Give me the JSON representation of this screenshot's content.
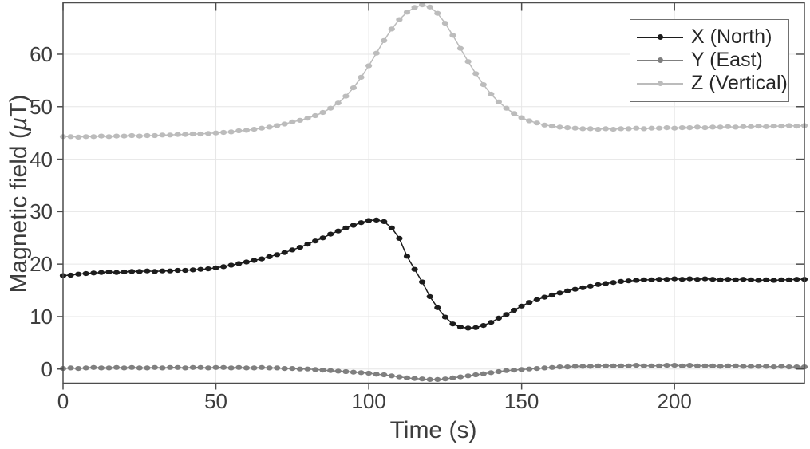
{
  "chart_data": {
    "type": "line",
    "title": "",
    "xlabel": "Time (s)",
    "ylabel": "Magnetic field (µT)",
    "xlim": [
      0,
      242.5
    ],
    "ylim": [
      -2.7,
      69.8
    ],
    "x_ticks": [
      0,
      50,
      100,
      150,
      200
    ],
    "y_ticks": [
      0,
      10,
      20,
      30,
      40,
      50,
      60
    ],
    "grid": true,
    "legend_position": "top-right",
    "x_definition": "time in seconds, t = index * t_step",
    "t_start": 0,
    "t_step": 2.5,
    "axis_color": "#4d4d4d",
    "grid_color": "#e6e6e6",
    "series": [
      {
        "name": "X (North)",
        "color": "#1c1c1c",
        "marker": "dot",
        "values": [
          17.8,
          17.9,
          18.1,
          18.2,
          18.3,
          18.4,
          18.5,
          18.4,
          18.5,
          18.6,
          18.6,
          18.7,
          18.6,
          18.7,
          18.7,
          18.8,
          18.8,
          18.9,
          19.0,
          19.1,
          19.3,
          19.5,
          19.8,
          20.1,
          20.4,
          20.7,
          21.0,
          21.4,
          21.8,
          22.2,
          22.7,
          23.2,
          23.8,
          24.4,
          25.0,
          25.7,
          26.3,
          26.9,
          27.4,
          27.9,
          28.3,
          28.4,
          28.1,
          26.9,
          24.9,
          21.5,
          19.0,
          16.6,
          13.8,
          11.7,
          9.9,
          8.6,
          8.0,
          7.8,
          7.9,
          8.3,
          8.9,
          9.7,
          10.4,
          11.2,
          12.0,
          12.7,
          13.2,
          13.7,
          14.1,
          14.5,
          14.9,
          15.2,
          15.5,
          15.8,
          16.1,
          16.3,
          16.5,
          16.7,
          16.8,
          16.9,
          17.0,
          17.0,
          17.1,
          17.1,
          17.2,
          17.1,
          17.2,
          17.1,
          17.2,
          17.1,
          17.0,
          17.1,
          17.0,
          17.1,
          17.0,
          16.9,
          17.0,
          16.9,
          17.0,
          17.0,
          17.1,
          17.1
        ]
      },
      {
        "name": "Y (East)",
        "color": "#7f7f7f",
        "marker": "dot",
        "values": [
          0.1,
          0.2,
          0.1,
          0.2,
          0.3,
          0.2,
          0.2,
          0.3,
          0.2,
          0.3,
          0.2,
          0.2,
          0.3,
          0.2,
          0.3,
          0.3,
          0.2,
          0.3,
          0.3,
          0.2,
          0.3,
          0.3,
          0.2,
          0.3,
          0.2,
          0.2,
          0.3,
          0.2,
          0.2,
          0.1,
          0.1,
          0.0,
          0.0,
          -0.1,
          -0.2,
          -0.3,
          -0.4,
          -0.5,
          -0.6,
          -0.7,
          -0.8,
          -1.0,
          -1.1,
          -1.3,
          -1.5,
          -1.7,
          -1.8,
          -1.9,
          -2.0,
          -2.0,
          -1.9,
          -1.7,
          -1.5,
          -1.3,
          -1.1,
          -0.9,
          -0.7,
          -0.5,
          -0.3,
          -0.2,
          -0.1,
          0.0,
          0.1,
          0.2,
          0.3,
          0.4,
          0.4,
          0.5,
          0.5,
          0.5,
          0.6,
          0.6,
          0.6,
          0.6,
          0.6,
          0.7,
          0.6,
          0.6,
          0.6,
          0.7,
          0.7,
          0.6,
          0.7,
          0.6,
          0.6,
          0.6,
          0.5,
          0.6,
          0.6,
          0.5,
          0.5,
          0.5,
          0.5,
          0.4,
          0.5,
          0.4,
          0.4,
          0.4
        ]
      },
      {
        "name": "Z (Vertical)",
        "color": "#bcbcbc",
        "marker": "dot",
        "values": [
          44.3,
          44.3,
          44.2,
          44.3,
          44.3,
          44.4,
          44.3,
          44.4,
          44.4,
          44.5,
          44.4,
          44.5,
          44.5,
          44.6,
          44.6,
          44.7,
          44.7,
          44.8,
          44.8,
          44.9,
          45.0,
          45.1,
          45.2,
          45.4,
          45.5,
          45.7,
          45.9,
          46.1,
          46.4,
          46.7,
          47.1,
          47.4,
          47.8,
          48.3,
          48.9,
          49.7,
          50.7,
          52.0,
          53.6,
          55.6,
          57.8,
          60.2,
          62.6,
          64.8,
          66.6,
          68.0,
          68.9,
          69.4,
          69.0,
          67.8,
          65.9,
          63.6,
          61.1,
          58.6,
          56.3,
          54.2,
          52.4,
          50.9,
          49.7,
          48.7,
          47.9,
          47.3,
          46.9,
          46.5,
          46.3,
          46.1,
          46.0,
          45.9,
          45.8,
          45.8,
          45.7,
          45.8,
          45.7,
          45.8,
          45.8,
          45.9,
          45.8,
          45.9,
          45.9,
          46.0,
          45.9,
          46.0,
          46.0,
          46.1,
          46.0,
          46.1,
          46.1,
          46.2,
          46.1,
          46.2,
          46.2,
          46.3,
          46.2,
          46.3,
          46.3,
          46.4,
          46.3,
          46.4
        ]
      }
    ]
  }
}
